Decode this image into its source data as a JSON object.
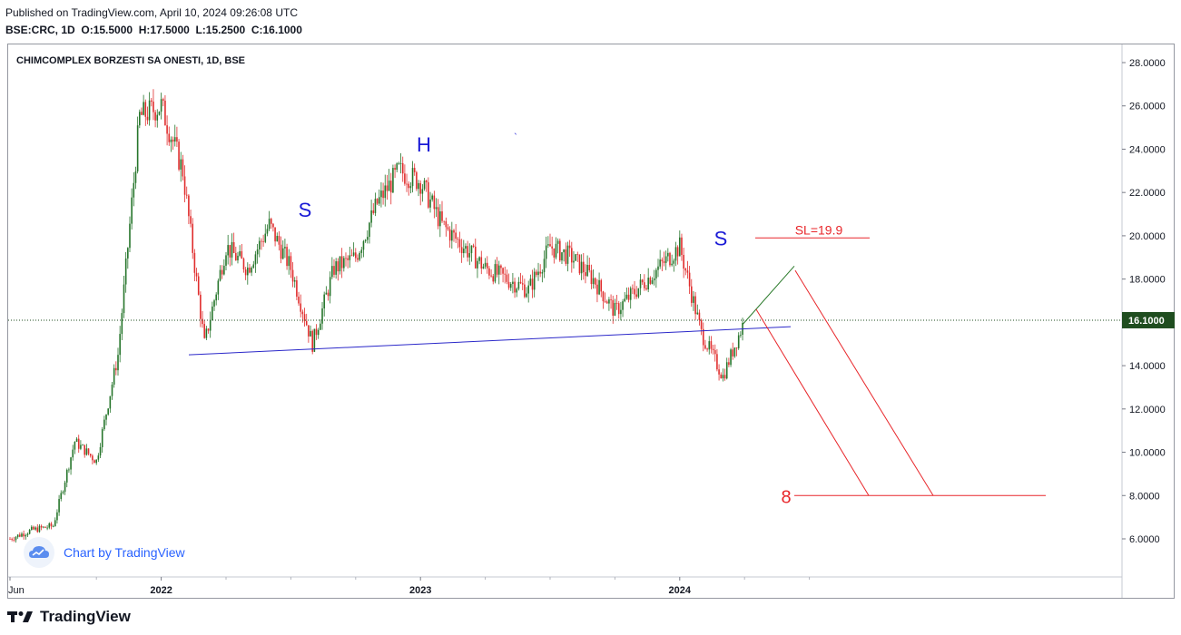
{
  "published": "Published on TradingView.com, April 10, 2024 09:26:08 UTC",
  "header": {
    "symbol_tf": "BSE:CRC, 1D",
    "o": "O:15.5000",
    "h": "H:17.5000",
    "l": "L:15.2500",
    "c": "C:16.1000"
  },
  "inner_title": "CHIMCOMPLEX BORZESTI SA ONESTI, 1D, BSE",
  "watermark": "Chart by TradingView",
  "footer_brand": "TradingView",
  "colors": {
    "up": "#26752b",
    "down": "#e02d2d",
    "trendline": "#2b28c9",
    "projection": "#e8262a",
    "pattern_label": "#1a1ad6",
    "price_tag": "#1f4d1f"
  },
  "chart_data": {
    "type": "candlestick",
    "title": "CHIMCOMPLEX BORZESTI SA ONESTI, 1D, BSE",
    "ylim": [
      4.3,
      29.0
    ],
    "x_axis_labels": [
      "Jun",
      "2022",
      "2023",
      "2024"
    ],
    "y_ticks": [
      "28.0000",
      "26.0000",
      "24.0000",
      "22.0000",
      "20.0000",
      "18.0000",
      "16.0000",
      "14.0000",
      "12.0000",
      "10.0000",
      "8.0000",
      "6.0000"
    ],
    "last_price": "16.1000",
    "approx_close_path": [
      {
        "x": "2021-06",
        "y": 6.0
      },
      {
        "x": "2021-07",
        "y": 6.4
      },
      {
        "x": "2021-08",
        "y": 6.6
      },
      {
        "x": "2021-09",
        "y": 10.5
      },
      {
        "x": "2021-10",
        "y": 9.6
      },
      {
        "x": "2021-11",
        "y": 14.5
      },
      {
        "x": "2021-12",
        "y": 25.5
      },
      {
        "x": "2022-01",
        "y": 26.0
      },
      {
        "x": "2022-02",
        "y": 23.0
      },
      {
        "x": "2022-03",
        "y": 15.0
      },
      {
        "x": "2022-04",
        "y": 19.5
      },
      {
        "x": "2022-05",
        "y": 18.5
      },
      {
        "x": "2022-06",
        "y": 20.5
      },
      {
        "x": "2022-07",
        "y": 18.5
      },
      {
        "x": "2022-08",
        "y": 15.0
      },
      {
        "x": "2022-09",
        "y": 18.5
      },
      {
        "x": "2022-10",
        "y": 19.0
      },
      {
        "x": "2022-11",
        "y": 21.5
      },
      {
        "x": "2022-12",
        "y": 23.0
      },
      {
        "x": "2023-01",
        "y": 22.5
      },
      {
        "x": "2023-02",
        "y": 20.5
      },
      {
        "x": "2023-03",
        "y": 19.5
      },
      {
        "x": "2023-04",
        "y": 18.5
      },
      {
        "x": "2023-05",
        "y": 18.0
      },
      {
        "x": "2023-06",
        "y": 17.5
      },
      {
        "x": "2023-07",
        "y": 19.5
      },
      {
        "x": "2023-08",
        "y": 19.0
      },
      {
        "x": "2023-09",
        "y": 18.0
      },
      {
        "x": "2023-10",
        "y": 16.5
      },
      {
        "x": "2023-11",
        "y": 17.5
      },
      {
        "x": "2023-12",
        "y": 18.5
      },
      {
        "x": "2024-01",
        "y": 19.5
      },
      {
        "x": "2024-02",
        "y": 15.5
      },
      {
        "x": "2024-03",
        "y": 13.5
      },
      {
        "x": "2024-04",
        "y": 16.1
      }
    ],
    "annotations": [
      {
        "text": "S",
        "kind": "left-shoulder",
        "price": 20.8
      },
      {
        "text": "H",
        "kind": "head",
        "price": 23.8
      },
      {
        "text": "S",
        "kind": "right-shoulder",
        "price": 19.9
      },
      {
        "text": "SL=19.9",
        "kind": "stop-loss",
        "price": 19.9
      },
      {
        "text": "8",
        "kind": "target",
        "price": 8.0
      },
      {
        "text": "`",
        "kind": "stray-mark",
        "price": 24.4
      }
    ],
    "neckline": {
      "from": {
        "x": "2022-03",
        "y": 14.5
      },
      "to": {
        "x": "2024-05",
        "y": 15.8
      }
    }
  }
}
